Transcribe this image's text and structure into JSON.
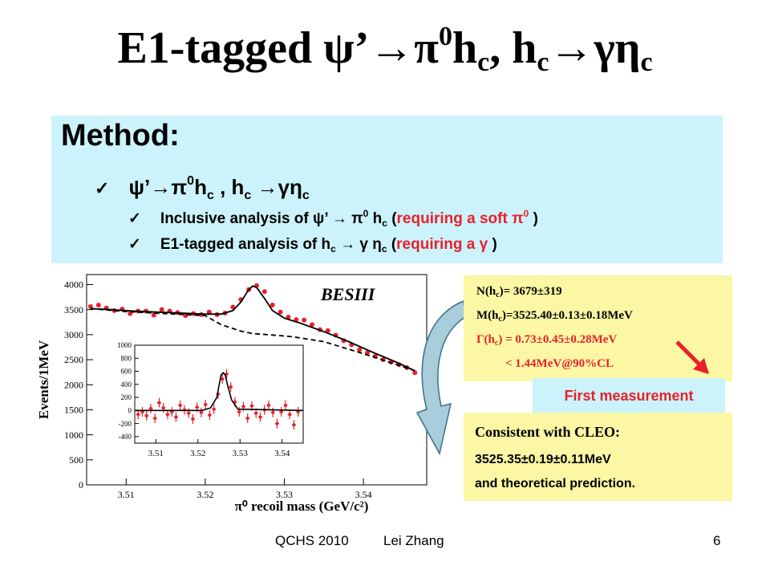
{
  "title": {
    "prefix": "E1-tagged ψ’→π",
    "sup0": "0",
    "h": "h",
    "sub_c1": "c",
    "mid": ", h",
    "sub_c2": "c",
    "arrow": "→γη",
    "sub_c3": "c"
  },
  "method": {
    "heading": "Method:",
    "line1": {
      "check": "✓",
      "a": "ψ’→π",
      "sup0": "0",
      "b": "h",
      "sub1": "c",
      "c": " , h",
      "sub2": "c",
      "d": " →γη",
      "sub3": "c"
    },
    "line2": {
      "check": "✓",
      "a": "Inclusive analysis of ψ’ → π",
      "sup0": "0",
      "b": " h",
      "sub": "c",
      "c": " (",
      "red": "requiring a soft π",
      "redsup": "0",
      "d": " )"
    },
    "line3": {
      "check": "✓",
      "a": "E1-tagged analysis of h",
      "sub1": "c",
      "b": " → γ η",
      "sub2": "c",
      "c": " (",
      "red": "requiring a γ",
      "d": " )"
    }
  },
  "results": {
    "n_label": "N(h",
    "n_sub": "c",
    "n_val": ")= 3679±319",
    "m_label": "M(h",
    "m_sub": "c",
    "m_val": ")=3525.40±0.13±0.18MeV",
    "g_label": "Γ(h",
    "g_sub": "c",
    "g_val": ") = 0.73±0.45±0.28MeV",
    "limit": "< 1.44MeV@90%CL"
  },
  "first_measurement": "First measurement",
  "consistent": {
    "line1": "Consistent with CLEO:",
    "line2": "3525.35±0.19±0.11MeV",
    "line3": "and theoretical prediction."
  },
  "footer": {
    "conf": "QCHS 2010",
    "author": "Lei Zhang",
    "page": "6"
  },
  "colors": {
    "accent_red": "#e8202a",
    "method_bg": "#ccf3fb",
    "result_bg": "#fbf7a4"
  },
  "chart_data": [
    {
      "type": "scatter",
      "title": "BESIII",
      "xlabel": "π⁰ recoil mass (GeV/c²)",
      "ylabel": "Events/1MeV",
      "xlim": [
        3.505,
        3.548
      ],
      "ylim": [
        0,
        4200
      ],
      "x_ticks": [
        "3.51",
        "3.52",
        "3.53",
        "3.54"
      ],
      "y_ticks": [
        "0",
        "500",
        "1000",
        "1500",
        "2000",
        "2500",
        "3000",
        "3500",
        "4000"
      ],
      "series": [
        {
          "kind": "points",
          "x": [
            3.5055,
            3.5065,
            3.5075,
            3.5085,
            3.5095,
            3.5105,
            3.5115,
            3.5125,
            3.5135,
            3.5145,
            3.5155,
            3.5165,
            3.5175,
            3.5185,
            3.5195,
            3.5205,
            3.5215,
            3.5225,
            3.5235,
            3.5245,
            3.5255,
            3.5265,
            3.5275,
            3.5285,
            3.5295,
            3.5305,
            3.5315,
            3.5325,
            3.5335,
            3.5345,
            3.5355,
            3.5365,
            3.5375,
            3.5385,
            3.5395,
            3.5405,
            3.5415,
            3.5425,
            3.5435,
            3.5445,
            3.5455,
            3.5465
          ],
          "y": [
            3560,
            3590,
            3530,
            3480,
            3510,
            3420,
            3470,
            3470,
            3390,
            3500,
            3470,
            3440,
            3380,
            3420,
            3400,
            3450,
            3400,
            3430,
            3550,
            3700,
            3900,
            3980,
            3860,
            3590,
            3450,
            3350,
            3300,
            3290,
            3200,
            3100,
            3080,
            2990,
            2880,
            2800,
            2700,
            2640,
            2570,
            2500,
            2450,
            2400,
            2340,
            2240
          ]
        },
        {
          "kind": "fit",
          "x": [
            3.5055,
            3.508,
            3.511,
            3.514,
            3.517,
            3.52,
            3.522,
            3.5235,
            3.5245,
            3.5255,
            3.526,
            3.5265,
            3.5275,
            3.5285,
            3.53,
            3.532,
            3.535,
            3.538,
            3.541,
            3.544,
            3.5465
          ],
          "y": [
            3520,
            3500,
            3470,
            3450,
            3430,
            3410,
            3410,
            3480,
            3650,
            3900,
            3970,
            3940,
            3720,
            3480,
            3330,
            3230,
            3060,
            2870,
            2660,
            2460,
            2280
          ]
        },
        {
          "kind": "background",
          "x": [
            3.5055,
            3.51,
            3.515,
            3.52,
            3.522,
            3.5245,
            3.526,
            3.528,
            3.531,
            3.535,
            3.54,
            3.5465
          ],
          "y": [
            3520,
            3460,
            3420,
            3380,
            3200,
            3070,
            3020,
            3000,
            2960,
            2860,
            2620,
            2280
          ]
        }
      ]
    },
    {
      "type": "scatter",
      "title": "",
      "xlabel": "",
      "ylabel": "",
      "xlim": [
        3.505,
        3.545
      ],
      "ylim": [
        -500,
        1000
      ],
      "x_ticks": [
        "3.51",
        "3.52",
        "3.53",
        "3.54"
      ],
      "y_ticks": [
        "-400",
        "-200",
        "0",
        "200",
        "400",
        "600",
        "800",
        "1000"
      ],
      "series": [
        {
          "kind": "points",
          "x": [
            3.5058,
            3.5068,
            3.5078,
            3.5088,
            3.5098,
            3.5108,
            3.5118,
            3.5128,
            3.5138,
            3.5148,
            3.5158,
            3.5168,
            3.5178,
            3.5188,
            3.5198,
            3.5208,
            3.5218,
            3.5228,
            3.5238,
            3.5248,
            3.5258,
            3.5268,
            3.5278,
            3.5288,
            3.5298,
            3.5308,
            3.5318,
            3.5328,
            3.5338,
            3.5348,
            3.5358,
            3.5368,
            3.5378,
            3.5388,
            3.5398,
            3.5408,
            3.5418,
            3.5428,
            3.5438
          ],
          "y": [
            -60,
            -20,
            -80,
            30,
            -120,
            120,
            40,
            -60,
            -20,
            -100,
            80,
            10,
            -40,
            -130,
            50,
            -30,
            90,
            -70,
            20,
            250,
            480,
            560,
            360,
            130,
            -20,
            60,
            -120,
            70,
            -40,
            -100,
            10,
            80,
            -30,
            -200,
            -20,
            80,
            -60,
            -220,
            -20
          ]
        },
        {
          "kind": "fit",
          "x": [
            3.505,
            3.521,
            3.523,
            3.5245,
            3.525,
            3.5255,
            3.526,
            3.5265,
            3.527,
            3.528,
            3.5295,
            3.545
          ],
          "y": [
            0,
            0,
            40,
            200,
            380,
            540,
            580,
            540,
            400,
            160,
            20,
            0
          ]
        }
      ]
    }
  ]
}
